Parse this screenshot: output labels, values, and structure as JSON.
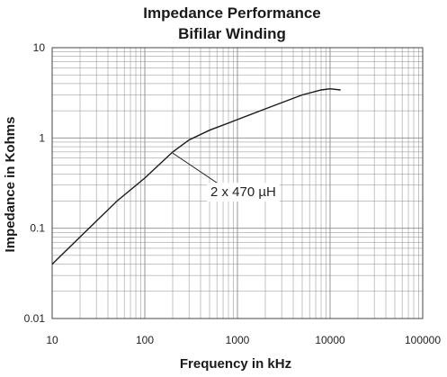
{
  "chart_data": {
    "type": "line",
    "title": "Impedance Performance",
    "subtitle": "Bifilar Winding",
    "xlabel": "Frequency in kHz",
    "ylabel": "Impedance in Kohms",
    "x_scale": "log",
    "y_scale": "log",
    "xlim": [
      10,
      100000
    ],
    "ylim": [
      0.01,
      10
    ],
    "x_ticks": [
      10,
      100,
      1000,
      10000,
      100000
    ],
    "x_tick_labels": [
      "10",
      "100",
      "1000",
      "10000",
      "100000"
    ],
    "y_ticks": [
      0.01,
      0.1,
      1,
      10
    ],
    "y_tick_labels": [
      "0.01",
      "0.1",
      "1",
      "10"
    ],
    "grid": true,
    "series": [
      {
        "x": [
          10,
          20,
          50,
          100,
          200,
          300,
          500,
          1000,
          2000,
          5000,
          8000,
          10000,
          13000
        ],
        "y": [
          0.04,
          0.08,
          0.2,
          0.36,
          0.7,
          0.95,
          1.22,
          1.6,
          2.1,
          3.0,
          3.4,
          3.5,
          3.4
        ]
      }
    ],
    "annotations": [
      {
        "text": "2 x 470 µH",
        "x": 200,
        "y": 0.68
      }
    ],
    "colors": {
      "line": "#1a1a1a",
      "grid": "#8a8a8a",
      "axis": "#444444"
    }
  }
}
